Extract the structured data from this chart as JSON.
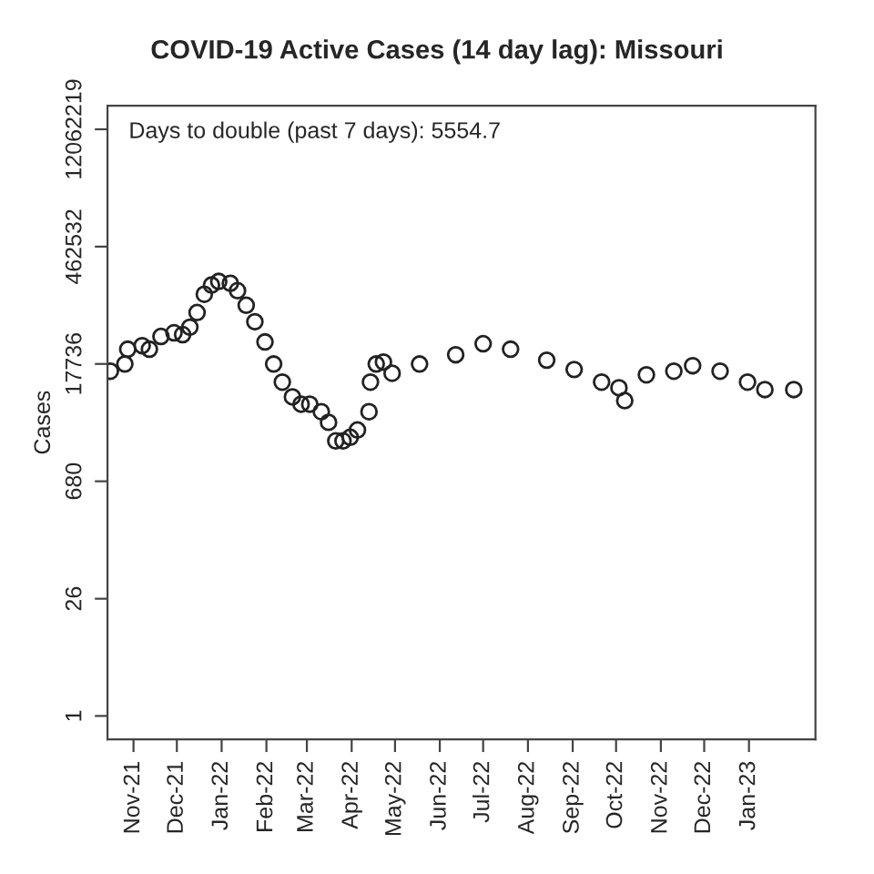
{
  "chart_data": {
    "type": "scatter",
    "title": "COVID-19 Active Cases (14 day lag): Missouri",
    "ylabel": "Cases",
    "annotations": [
      "Days to double (past 7 days): 5554.7"
    ],
    "log": "y",
    "grid": false,
    "legend": false,
    "marker": "circle",
    "xlim": [
      "2021-10-14",
      "2023-02-16"
    ],
    "ylim": [
      0.521,
      23200000
    ],
    "yticks": [
      1,
      26,
      680,
      17736,
      462532,
      12062219
    ],
    "xticks": [
      {
        "value": "2021-11-01",
        "label": "Nov-21"
      },
      {
        "value": "2021-12-01",
        "label": "Dec-21"
      },
      {
        "value": "2022-01-01",
        "label": "Jan-22"
      },
      {
        "value": "2022-02-01",
        "label": "Feb-22"
      },
      {
        "value": "2022-03-01",
        "label": "Mar-22"
      },
      {
        "value": "2022-04-01",
        "label": "Apr-22"
      },
      {
        "value": "2022-05-01",
        "label": "May-22"
      },
      {
        "value": "2022-06-01",
        "label": "Jun-22"
      },
      {
        "value": "2022-07-01",
        "label": "Jul-22"
      },
      {
        "value": "2022-08-01",
        "label": "Aug-22"
      },
      {
        "value": "2022-09-01",
        "label": "Sep-22"
      },
      {
        "value": "2022-10-01",
        "label": "Oct-22"
      },
      {
        "value": "2022-11-01",
        "label": "Nov-22"
      },
      {
        "value": "2022-12-01",
        "label": "Dec-22"
      },
      {
        "value": "2023-01-01",
        "label": "Jan-23"
      }
    ],
    "series": [
      {
        "color": "#222222",
        "x": [
          "2021-10-16",
          "2021-10-26",
          "2021-10-28",
          "2021-11-07",
          "2021-11-12",
          "2021-11-20",
          "2021-11-29",
          "2021-12-05",
          "2021-12-10",
          "2021-12-15",
          "2021-12-20",
          "2021-12-25",
          "2021-12-30",
          "2022-01-07",
          "2022-01-12",
          "2022-01-18",
          "2022-01-24",
          "2022-01-31",
          "2022-02-06",
          "2022-02-12",
          "2022-02-19",
          "2022-02-25",
          "2022-03-03",
          "2022-03-11",
          "2022-03-16",
          "2022-03-21",
          "2022-03-26",
          "2022-03-31",
          "2022-04-05",
          "2022-04-13",
          "2022-04-14",
          "2022-04-18",
          "2022-04-23",
          "2022-04-29",
          "2022-05-18",
          "2022-06-12",
          "2022-07-01",
          "2022-07-20",
          "2022-08-14",
          "2022-09-02",
          "2022-09-21",
          "2022-10-03",
          "2022-10-07",
          "2022-10-22",
          "2022-11-10",
          "2022-11-23",
          "2022-12-12",
          "2022-12-31",
          "2023-01-12",
          "2023-02-01"
        ],
        "values": [
          14500,
          17700,
          26700,
          29500,
          26700,
          38100,
          42200,
          40100,
          49200,
          74000,
          123000,
          159000,
          176000,
          167000,
          136000,
          90600,
          57300,
          32700,
          17700,
          10700,
          7100,
          5800,
          5800,
          4700,
          3500,
          2090,
          2090,
          2310,
          2830,
          4700,
          10700,
          17700,
          18700,
          13700,
          17700,
          22900,
          31100,
          26700,
          19700,
          15200,
          10700,
          9150,
          6400,
          13100,
          14500,
          16900,
          14500,
          10700,
          8700,
          8700
        ]
      }
    ]
  }
}
